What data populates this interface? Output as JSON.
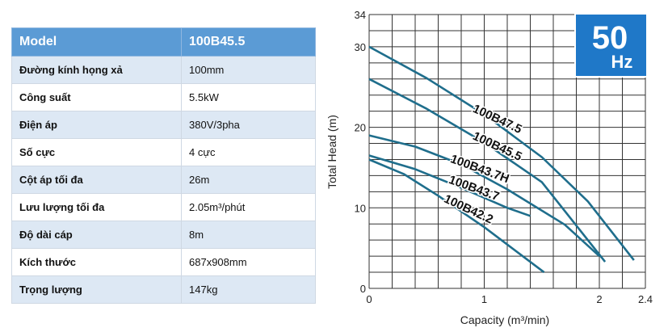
{
  "table": {
    "header": [
      "Model",
      "100B45.5"
    ],
    "rows": [
      {
        "label": "Đường kính họng xả",
        "value": "100mm"
      },
      {
        "label": "Công suất",
        "value": "5.5kW"
      },
      {
        "label": "Điện áp",
        "value": "380V/3pha"
      },
      {
        "label": "Số cực",
        "value": "4 cực"
      },
      {
        "label": "Cột áp tối đa",
        "value": "26m"
      },
      {
        "label": "Lưu lượng tối đa",
        "value": "2.05m³/phút"
      },
      {
        "label": "Độ dài cáp",
        "value": "8m"
      },
      {
        "label": "Kích thước",
        "value": "687x908mm"
      },
      {
        "label": "Trọng lượng",
        "value": "147kg"
      }
    ]
  },
  "badge": {
    "value": "50",
    "unit": "Hz"
  },
  "colors": {
    "curve": "#1f6e8c",
    "badge": "#1f78c8",
    "header": "#5b9bd5",
    "stripe": "#dde8f4"
  },
  "chart_data": {
    "type": "line",
    "xlabel": "Capacity (m³/min)",
    "ylabel": "Total Head (m)",
    "xlim": [
      0,
      2.4
    ],
    "ylim": [
      0,
      34
    ],
    "xticks": [
      {
        "v": 0,
        "t": "0"
      },
      {
        "v": 1,
        "t": "1"
      },
      {
        "v": 2,
        "t": "2"
      },
      {
        "v": 2.4,
        "t": "2.4"
      }
    ],
    "yticks": [
      {
        "v": 0,
        "t": "0"
      },
      {
        "v": 10,
        "t": "10"
      },
      {
        "v": 20,
        "t": "20"
      },
      {
        "v": 30,
        "t": "30"
      },
      {
        "v": 34,
        "t": "34"
      }
    ],
    "grid": true,
    "series": [
      {
        "name": "100B47.5",
        "x": [
          0,
          0.5,
          1.0,
          1.5,
          1.9,
          2.3
        ],
        "y": [
          30,
          26.1,
          21.6,
          16.3,
          10.8,
          3.5
        ],
        "label_angle": 25
      },
      {
        "name": "100B45.5",
        "x": [
          0,
          0.5,
          1.0,
          1.5,
          2.05
        ],
        "y": [
          26,
          22.3,
          18.1,
          13.2,
          3.3
        ],
        "label_angle": 25
      },
      {
        "name": "100B43.7H",
        "x": [
          0,
          0.4,
          0.8,
          1.2,
          1.7,
          2.0
        ],
        "y": [
          19,
          17.6,
          15.4,
          12.3,
          7.9,
          4.0
        ],
        "label_angle": 20
      },
      {
        "name": "100B43.7",
        "x": [
          0,
          0.4,
          0.8,
          1.2,
          1.4
        ],
        "y": [
          16.5,
          14.8,
          12.5,
          10.0,
          9.0
        ],
        "label_angle": 20
      },
      {
        "name": "100B42.2",
        "x": [
          0,
          0.3,
          0.6,
          1.0,
          1.52
        ],
        "y": [
          16,
          14.2,
          11.5,
          7.6,
          2.0
        ],
        "label_angle": 25
      }
    ]
  }
}
